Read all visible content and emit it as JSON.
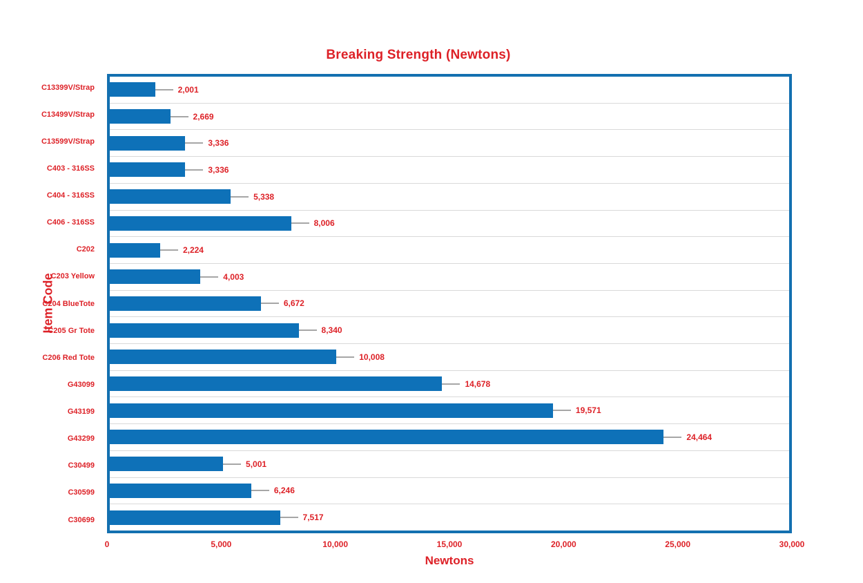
{
  "chart_data": {
    "type": "bar",
    "orientation": "horizontal",
    "title": "Breaking Strength (Newtons)",
    "xlabel": "Newtons",
    "ylabel": "Item Code",
    "xlim": [
      0,
      30000
    ],
    "grid": "horizontal-category-lines",
    "legend": "none",
    "x_ticks": [
      {
        "value": 0,
        "label": "0"
      },
      {
        "value": 5000,
        "label": "5,000"
      },
      {
        "value": 10000,
        "label": "10,000"
      },
      {
        "value": 15000,
        "label": "15,000"
      },
      {
        "value": 20000,
        "label": "20,000"
      },
      {
        "value": 25000,
        "label": "25,000"
      },
      {
        "value": 30000,
        "label": "30,000"
      }
    ],
    "categories": [
      "C13399V/Strap",
      "C13499V/Strap",
      "C13599V/Strap",
      "C403 - 316SS",
      "C404 - 316SS",
      "C406 - 316SS",
      "C202",
      "C203 Yellow",
      "C204 BlueTote",
      "C205 Gr Tote",
      "C206 Red Tote",
      "G43099",
      "G43199",
      "G43299",
      "C30499",
      "C30599",
      "C30699"
    ],
    "values": [
      2001,
      2669,
      3336,
      3336,
      5338,
      8006,
      2224,
      4003,
      6672,
      8340,
      10008,
      14678,
      19571,
      24464,
      5001,
      6246,
      7517
    ],
    "value_labels": [
      "2,001",
      "2,669",
      "3,336",
      "3,336",
      "5,338",
      "8,006",
      "2,224",
      "4,003",
      "6,672",
      "8,340",
      "10,008",
      "14,678",
      "19,571",
      "24,464",
      "5,001",
      "6,246",
      "7,517"
    ],
    "colors": {
      "bar": "#0E71B8",
      "plot_border": "#1370B0",
      "gridline": "#D9D9D9",
      "leader_line": "#A6A6A6",
      "text": "#DD2127",
      "background": "#FFFFFF"
    }
  }
}
